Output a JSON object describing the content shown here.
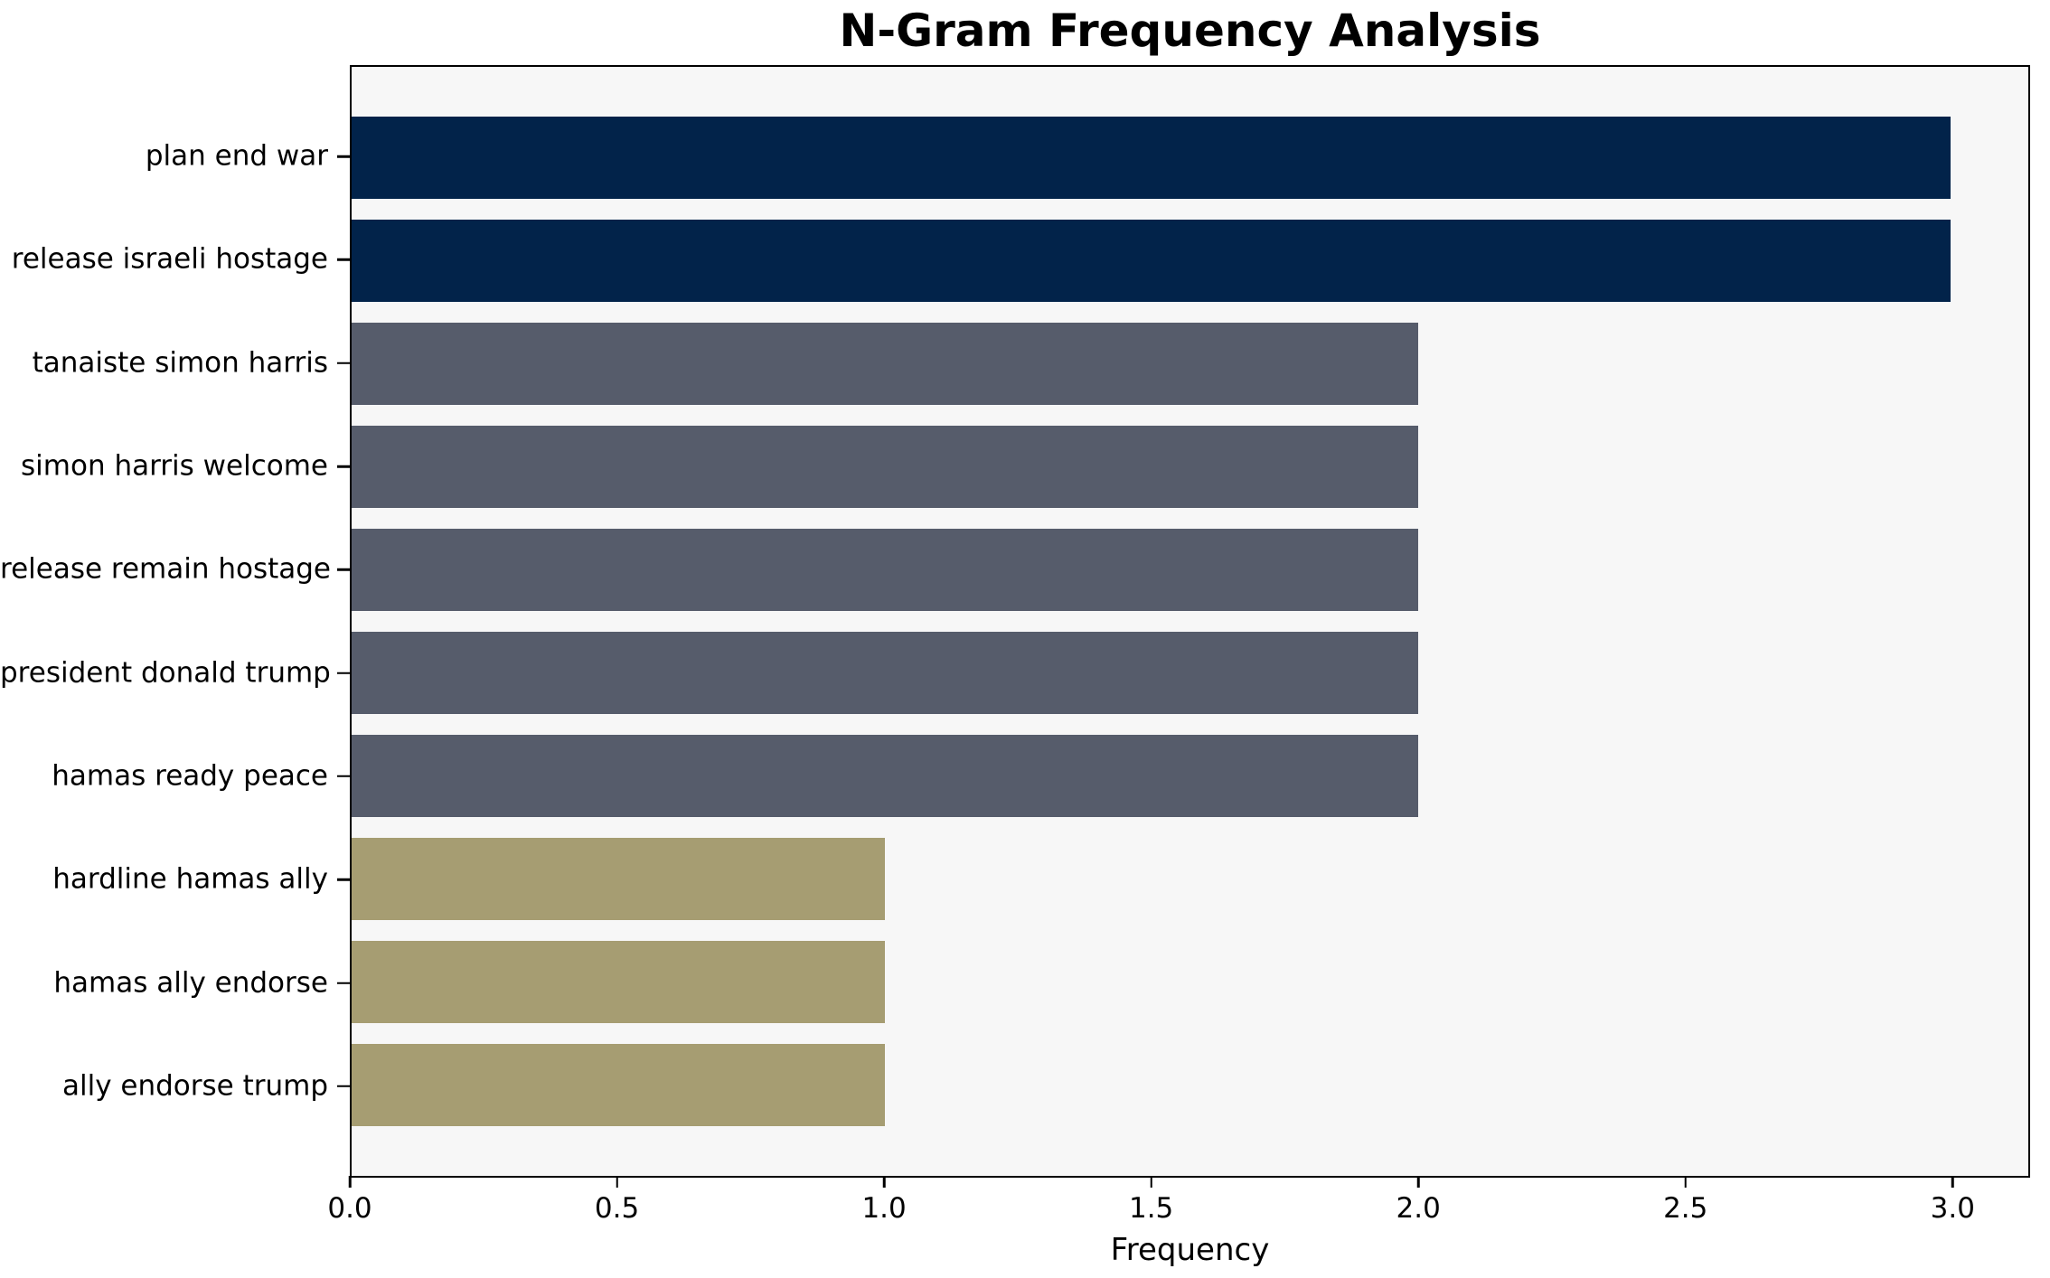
{
  "chart_data": {
    "type": "bar",
    "orientation": "horizontal",
    "title": "N-Gram Frequency Analysis",
    "xlabel": "Frequency",
    "ylabel": "",
    "categories": [
      "plan end war",
      "release israeli hostage",
      "tanaiste simon harris",
      "simon harris welcome",
      "release remain hostage",
      "president donald trump",
      "hamas ready peace",
      "hardline hamas ally",
      "hamas ally endorse",
      "ally endorse trump"
    ],
    "values": [
      3,
      3,
      2,
      2,
      2,
      2,
      2,
      1,
      1,
      1
    ],
    "bar_colors": [
      "#02234a",
      "#02234a",
      "#565c6b",
      "#565c6b",
      "#565c6b",
      "#565c6b",
      "#565c6b",
      "#a69d72",
      "#a69d72",
      "#a69d72"
    ],
    "color_legend": {
      "frequency_3": "#02234a",
      "frequency_2": "#565c6b",
      "frequency_1": "#a69d72"
    },
    "xlim": [
      0,
      3.145
    ],
    "xticks": [
      0.0,
      0.5,
      1.0,
      1.5,
      2.0,
      2.5,
      3.0
    ],
    "xtick_labels": [
      "0.0",
      "0.5",
      "1.0",
      "1.5",
      "2.0",
      "2.5",
      "3.0"
    ],
    "grid": false,
    "legend": "none",
    "plot_background": "#f7f7f7",
    "figure_background": "#ffffff",
    "axis_color": "#000000",
    "text_color": "#000000"
  }
}
